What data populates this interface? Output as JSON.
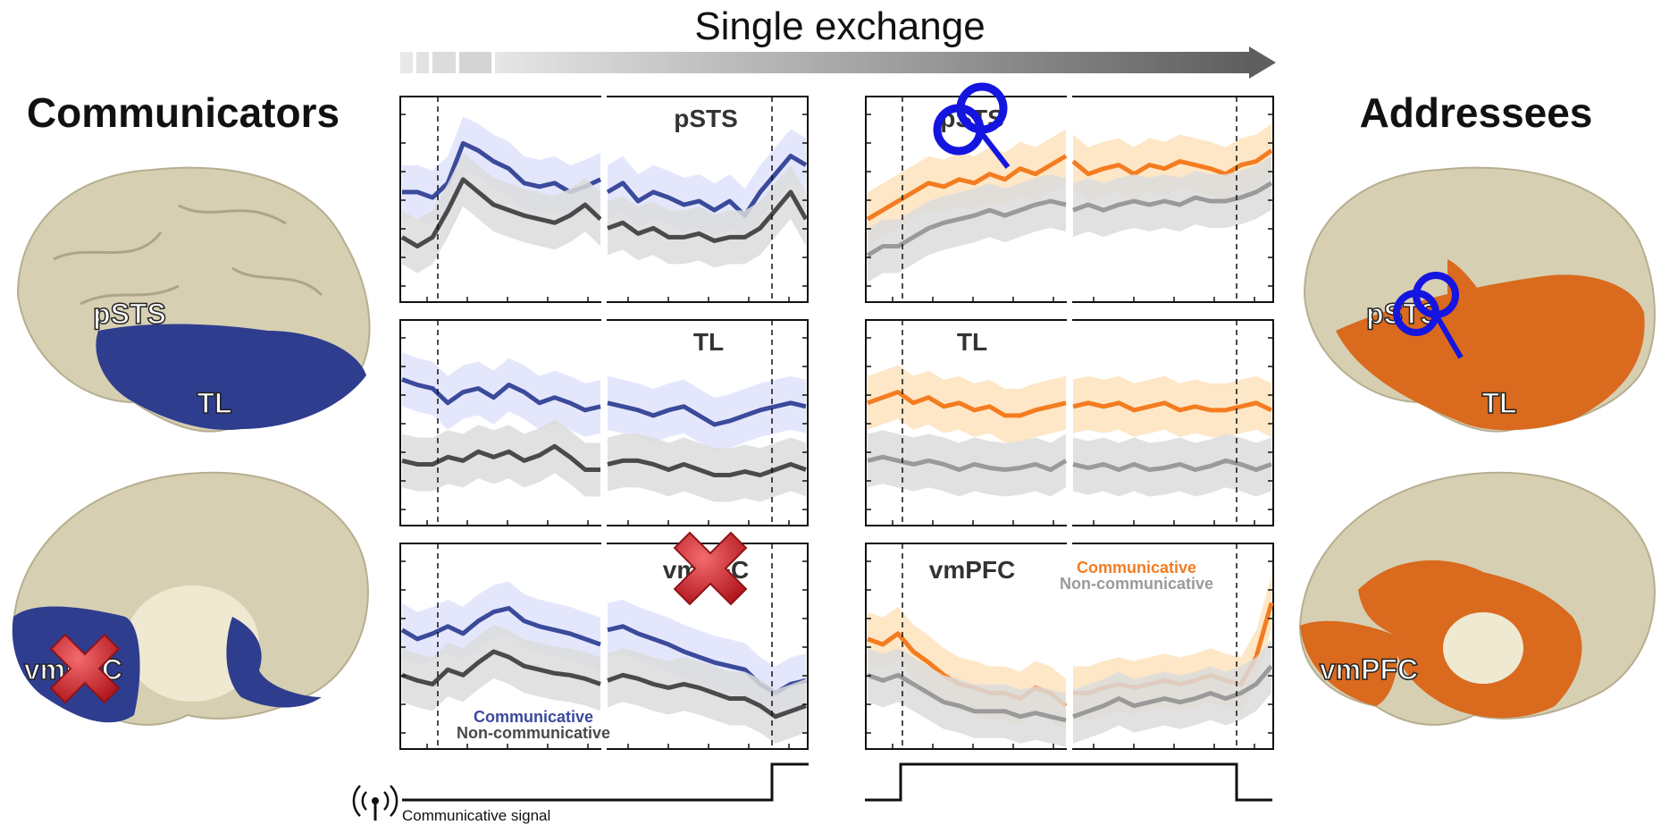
{
  "header": {
    "title": "Single exchange"
  },
  "left": {
    "title": "Communicators",
    "brain_lateral_labels": {
      "pSTS": "pSTS",
      "TL": "TL"
    },
    "brain_medial_labels": {
      "vmPFC": "vmPFC"
    }
  },
  "right": {
    "title": "Addressees",
    "brain_lateral_labels": {
      "pSTS": "pSTS",
      "TL": "TL"
    },
    "brain_medial_labels": {
      "vmPFC": "vmPFC"
    }
  },
  "panels": {
    "left_top": "pSTS",
    "left_mid": "TL",
    "left_bot": "vmPFC",
    "right_top": "pSTS",
    "right_mid": "TL",
    "right_bot": "vmPFC"
  },
  "legend_left": {
    "communicative": "Communicative",
    "non_communicative": "Non-communicative"
  },
  "legend_right": {
    "communicative": "Communicative",
    "non_communicative": "Non-communicative"
  },
  "signal": {
    "label": "Communicative signal",
    "icon": "antenna-icon"
  },
  "markers": {
    "crossed_out": "red-x-icon",
    "magnifier": "magnifier-icon"
  },
  "colors": {
    "communicators_comm": "#3b4a9a",
    "communicators_comm_band": "#dfe3fb",
    "addressees_comm": "#f47c20",
    "addressees_comm_band": "#fde3bd",
    "noncomm_dark": "#4a4a4a",
    "noncomm_light": "#9a9a9a",
    "noncomm_band": "#dcdcdc",
    "brain_base": "#d7cfb2",
    "brain_blue": "#2f3d8f",
    "brain_orange": "#d96a1e",
    "magnifier": "#1515e0",
    "cross": "#d9262c"
  },
  "chart_data": [
    {
      "type": "line",
      "title": "pSTS",
      "xlabel": "",
      "ylabel": "",
      "series": [
        {
          "name": "Communicative",
          "values": [
            0.55,
            0.55,
            0.52,
            0.6,
            0.82,
            0.78,
            0.72,
            0.68,
            0.6,
            0.58,
            0.6,
            0.55,
            0.58,
            0.62,
            0.55,
            0.6,
            0.5,
            0.55,
            0.52,
            0.48,
            0.5,
            0.45,
            0.5,
            0.42,
            0.55,
            0.65,
            0.75,
            0.7
          ]
        },
        {
          "name": "Non-communicative",
          "values": [
            0.3,
            0.25,
            0.3,
            0.45,
            0.62,
            0.55,
            0.48,
            0.45,
            0.42,
            0.4,
            0.38,
            0.42,
            0.48,
            0.4,
            0.35,
            0.38,
            0.32,
            0.35,
            0.3,
            0.3,
            0.32,
            0.28,
            0.3,
            0.3,
            0.35,
            0.45,
            0.55,
            0.4
          ]
        }
      ]
    },
    {
      "type": "line",
      "title": "TL",
      "series": [
        {
          "name": "Communicative",
          "values": [
            0.75,
            0.72,
            0.7,
            0.62,
            0.68,
            0.7,
            0.65,
            0.72,
            0.68,
            0.62,
            0.65,
            0.62,
            0.58,
            0.6,
            0.62,
            0.6,
            0.58,
            0.55,
            0.58,
            0.6,
            0.55,
            0.5,
            0.52,
            0.55,
            0.58,
            0.6,
            0.62,
            0.6
          ]
        },
        {
          "name": "Non-communicative",
          "values": [
            0.3,
            0.28,
            0.28,
            0.32,
            0.3,
            0.35,
            0.32,
            0.35,
            0.3,
            0.33,
            0.38,
            0.32,
            0.25,
            0.25,
            0.28,
            0.3,
            0.3,
            0.28,
            0.25,
            0.28,
            0.25,
            0.22,
            0.22,
            0.24,
            0.22,
            0.25,
            0.28,
            0.25
          ]
        }
      ]
    },
    {
      "type": "line",
      "title": "vmPFC",
      "series": [
        {
          "name": "Communicative",
          "values": [
            0.6,
            0.55,
            0.58,
            0.62,
            0.58,
            0.65,
            0.7,
            0.72,
            0.65,
            0.62,
            0.6,
            0.58,
            0.55,
            0.52,
            0.6,
            0.62,
            0.58,
            0.55,
            0.52,
            0.48,
            0.45,
            0.42,
            0.4,
            0.38,
            0.3,
            0.25,
            0.3,
            0.32
          ]
        },
        {
          "name": "Non-communicative",
          "values": [
            0.35,
            0.32,
            0.3,
            0.38,
            0.35,
            0.42,
            0.48,
            0.45,
            0.4,
            0.38,
            0.36,
            0.35,
            0.33,
            0.3,
            0.32,
            0.35,
            0.33,
            0.3,
            0.28,
            0.3,
            0.28,
            0.25,
            0.22,
            0.22,
            0.18,
            0.12,
            0.15,
            0.18
          ]
        }
      ]
    },
    {
      "type": "line",
      "title": "pSTS",
      "series": [
        {
          "name": "Communicative",
          "values": [
            0.4,
            0.45,
            0.5,
            0.55,
            0.6,
            0.58,
            0.62,
            0.6,
            0.65,
            0.62,
            0.68,
            0.65,
            0.7,
            0.75,
            0.72,
            0.65,
            0.68,
            0.7,
            0.65,
            0.7,
            0.68,
            0.72,
            0.7,
            0.68,
            0.65,
            0.7,
            0.72,
            0.78
          ]
        },
        {
          "name": "Non-communicative",
          "values": [
            0.2,
            0.25,
            0.25,
            0.3,
            0.35,
            0.38,
            0.4,
            0.42,
            0.45,
            0.42,
            0.45,
            0.48,
            0.5,
            0.48,
            0.45,
            0.48,
            0.45,
            0.48,
            0.5,
            0.48,
            0.5,
            0.48,
            0.52,
            0.5,
            0.5,
            0.52,
            0.55,
            0.6
          ]
        }
      ]
    },
    {
      "type": "line",
      "title": "TL",
      "series": [
        {
          "name": "Communicative",
          "values": [
            0.62,
            0.65,
            0.68,
            0.62,
            0.65,
            0.6,
            0.62,
            0.58,
            0.6,
            0.55,
            0.55,
            0.58,
            0.6,
            0.62,
            0.6,
            0.62,
            0.6,
            0.62,
            0.58,
            0.6,
            0.62,
            0.58,
            0.6,
            0.58,
            0.58,
            0.6,
            0.62,
            0.58
          ]
        },
        {
          "name": "Non-communicative",
          "values": [
            0.3,
            0.32,
            0.3,
            0.28,
            0.3,
            0.28,
            0.25,
            0.28,
            0.26,
            0.25,
            0.26,
            0.28,
            0.25,
            0.3,
            0.28,
            0.26,
            0.28,
            0.25,
            0.28,
            0.25,
            0.26,
            0.28,
            0.25,
            0.27,
            0.3,
            0.28,
            0.25,
            0.28
          ]
        }
      ]
    },
    {
      "type": "line",
      "title": "vmPFC",
      "series": [
        {
          "name": "Communicative",
          "values": [
            0.55,
            0.52,
            0.58,
            0.48,
            0.42,
            0.35,
            0.3,
            0.28,
            0.25,
            0.25,
            0.22,
            0.28,
            0.25,
            0.18,
            0.25,
            0.25,
            0.28,
            0.3,
            0.28,
            0.3,
            0.32,
            0.3,
            0.32,
            0.35,
            0.32,
            0.3,
            0.45,
            0.75
          ]
        },
        {
          "name": "Non-communicative",
          "values": [
            0.35,
            0.32,
            0.35,
            0.3,
            0.25,
            0.2,
            0.18,
            0.15,
            0.15,
            0.15,
            0.12,
            0.14,
            0.12,
            0.1,
            0.12,
            0.15,
            0.18,
            0.22,
            0.18,
            0.2,
            0.22,
            0.2,
            0.22,
            0.25,
            0.22,
            0.25,
            0.3,
            0.4
          ]
        }
      ]
    }
  ]
}
